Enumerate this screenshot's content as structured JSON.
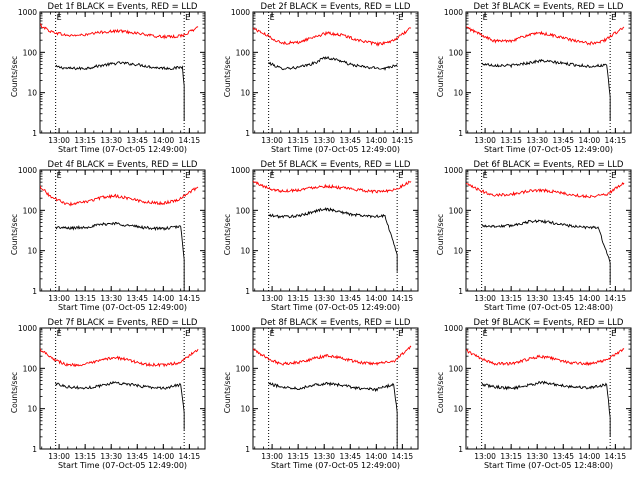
{
  "page": {
    "x_tick_labels": [
      "13:00",
      "13:15",
      "13:30",
      "13:45",
      "14:00",
      "14:15"
    ],
    "y_axis_label": "Counts/sec",
    "x_axis_label": "Start Time (07-Oct-05 12:49:00)",
    "series_colors": {
      "events": "#000000",
      "lld": "#ff0000"
    },
    "marker_letters": [
      "E",
      "E"
    ]
  },
  "chart_data": [
    {
      "type": "line",
      "title": "Det 1f BLACK = Events, RED = LLD",
      "ylabel": "Counts/sec",
      "xlabel": "Start Time (07-Oct-05 12:49:00)",
      "y_scale": "log",
      "ylim": [
        1,
        1000
      ],
      "y_tick_labels": [
        "1",
        "10",
        "100",
        "1000"
      ],
      "x_tick_labels": [
        "13:00",
        "13:15",
        "13:30",
        "13:45",
        "14:00",
        "14:15"
      ],
      "vertical_dotted_lines_time": [
        "12:58",
        "14:12"
      ],
      "series": [
        {
          "name": "Events",
          "color": "#000000",
          "x_time": [
            "12:58",
            "13:05",
            "13:15",
            "13:25",
            "13:35",
            "13:45",
            "13:55",
            "14:05",
            "14:11",
            "14:12",
            "14:12"
          ],
          "values": [
            44,
            40,
            40,
            48,
            55,
            50,
            42,
            40,
            43,
            15,
            2
          ]
        },
        {
          "name": "LLD",
          "color": "#ff0000",
          "x_time": [
            "12:49",
            "12:55",
            "13:05",
            "13:15",
            "13:25",
            "13:35",
            "13:45",
            "13:55",
            "14:05",
            "14:12",
            "14:20"
          ],
          "values": [
            480,
            330,
            260,
            270,
            320,
            340,
            300,
            250,
            240,
            270,
            420
          ]
        }
      ]
    },
    {
      "type": "line",
      "title": "Det 2f BLACK = Events, RED = LLD",
      "ylabel": "Counts/sec",
      "xlabel": "Start Time (07-Oct-05 12:49:00)",
      "y_scale": "log",
      "ylim": [
        1,
        1000
      ],
      "y_tick_labels": [
        "1",
        "10",
        "100",
        "1000"
      ],
      "x_tick_labels": [
        "13:00",
        "13:15",
        "13:30",
        "13:45",
        "14:00",
        "14:15"
      ],
      "vertical_dotted_lines_time": [
        "12:58",
        "14:12"
      ],
      "series": [
        {
          "name": "Events",
          "color": "#000000",
          "x_time": [
            "12:58",
            "13:05",
            "13:15",
            "13:25",
            "13:30",
            "13:38",
            "13:45",
            "13:55",
            "14:05",
            "14:12"
          ],
          "values": [
            55,
            40,
            42,
            55,
            75,
            65,
            50,
            42,
            40,
            50
          ]
        },
        {
          "name": "LLD",
          "color": "#ff0000",
          "x_time": [
            "12:49",
            "12:58",
            "13:05",
            "13:15",
            "13:25",
            "13:32",
            "13:40",
            "13:50",
            "14:00",
            "14:08",
            "14:20"
          ],
          "values": [
            400,
            250,
            170,
            175,
            250,
            300,
            270,
            200,
            160,
            175,
            400
          ]
        }
      ]
    },
    {
      "type": "line",
      "title": "Det 3f BLACK = Events, RED = LLD",
      "ylabel": "Counts/sec",
      "xlabel": "Start Time (07-Oct-05 12:49:00)",
      "y_scale": "log",
      "ylim": [
        1,
        1000
      ],
      "y_tick_labels": [
        "1",
        "10",
        "100",
        "1000"
      ],
      "x_tick_labels": [
        "13:00",
        "13:15",
        "13:30",
        "13:45",
        "14:00",
        "14:15"
      ],
      "vertical_dotted_lines_time": [
        "12:58",
        "14:12"
      ],
      "series": [
        {
          "name": "Events",
          "color": "#000000",
          "x_time": [
            "12:58",
            "13:05",
            "13:15",
            "13:25",
            "13:32",
            "13:40",
            "13:50",
            "14:00",
            "14:10",
            "14:12",
            "14:12"
          ],
          "values": [
            52,
            48,
            47,
            55,
            62,
            57,
            50,
            45,
            48,
            8,
            2
          ]
        },
        {
          "name": "LLD",
          "color": "#ff0000",
          "x_time": [
            "12:49",
            "12:58",
            "13:05",
            "13:15",
            "13:25",
            "13:32",
            "13:40",
            "13:50",
            "14:00",
            "14:08",
            "14:20"
          ],
          "values": [
            420,
            270,
            190,
            195,
            270,
            300,
            260,
            200,
            165,
            190,
            420
          ]
        }
      ]
    },
    {
      "type": "line",
      "title": "Det 4f BLACK = Events, RED = LLD",
      "ylabel": "Counts/sec",
      "xlabel": "Start Time (07-Oct-05 12:49:00)",
      "y_scale": "log",
      "ylim": [
        1,
        1000
      ],
      "y_tick_labels": [
        "1",
        "10",
        "100",
        "1000"
      ],
      "x_tick_labels": [
        "13:00",
        "13:15",
        "13:30",
        "13:45",
        "14:00",
        "14:15"
      ],
      "vertical_dotted_lines_time": [
        "12:58",
        "14:12"
      ],
      "series": [
        {
          "name": "Events",
          "color": "#000000",
          "x_time": [
            "12:58",
            "13:05",
            "13:15",
            "13:25",
            "13:32",
            "13:40",
            "13:50",
            "14:00",
            "14:10",
            "14:12",
            "14:12"
          ],
          "values": [
            38,
            36,
            38,
            45,
            48,
            42,
            37,
            35,
            40,
            6,
            1
          ]
        },
        {
          "name": "LLD",
          "color": "#ff0000",
          "x_time": [
            "12:49",
            "12:55",
            "13:05",
            "13:15",
            "13:25",
            "13:32",
            "13:40",
            "13:50",
            "14:00",
            "14:08",
            "14:20"
          ],
          "values": [
            400,
            220,
            140,
            160,
            210,
            230,
            200,
            160,
            150,
            180,
            380
          ]
        }
      ]
    },
    {
      "type": "line",
      "title": "Det 5f BLACK = Events, RED = LLD",
      "ylabel": "Counts/sec",
      "xlabel": "Start Time (07-Oct-05 12:49:00)",
      "y_scale": "log",
      "ylim": [
        1,
        1000
      ],
      "y_tick_labels": [
        "1",
        "10",
        "100",
        "1000"
      ],
      "x_tick_labels": [
        "13:00",
        "13:15",
        "13:30",
        "13:45",
        "14:00",
        "14:15"
      ],
      "vertical_dotted_lines_time": [
        "12:58",
        "14:12"
      ],
      "series": [
        {
          "name": "Events",
          "color": "#000000",
          "x_time": [
            "12:58",
            "13:05",
            "13:15",
            "13:25",
            "13:30",
            "13:38",
            "13:45",
            "13:55",
            "14:05",
            "14:12",
            "14:12"
          ],
          "values": [
            75,
            70,
            72,
            95,
            110,
            95,
            80,
            72,
            72,
            8,
            3
          ]
        },
        {
          "name": "LLD",
          "color": "#ff0000",
          "x_time": [
            "12:49",
            "12:58",
            "13:05",
            "13:15",
            "13:25",
            "13:32",
            "13:40",
            "13:50",
            "14:00",
            "14:10",
            "14:20"
          ],
          "values": [
            520,
            350,
            300,
            320,
            380,
            400,
            360,
            320,
            290,
            320,
            520
          ]
        }
      ]
    },
    {
      "type": "line",
      "title": "Det 6f BLACK = Events, RED = LLD",
      "ylabel": "Counts/sec",
      "xlabel": "Start Time (07-Oct-05 12:48:00)",
      "y_scale": "log",
      "ylim": [
        1,
        1000
      ],
      "y_tick_labels": [
        "1",
        "10",
        "100",
        "1000"
      ],
      "x_tick_labels": [
        "13:00",
        "13:15",
        "13:30",
        "13:45",
        "14:00",
        "14:15"
      ],
      "vertical_dotted_lines_time": [
        "12:58",
        "14:12"
      ],
      "series": [
        {
          "name": "Events",
          "color": "#000000",
          "x_time": [
            "12:58",
            "13:05",
            "13:15",
            "13:25",
            "13:30",
            "13:38",
            "13:45",
            "13:55",
            "14:05",
            "14:12",
            "14:12"
          ],
          "values": [
            42,
            40,
            42,
            52,
            55,
            50,
            44,
            38,
            38,
            5,
            1.5
          ]
        },
        {
          "name": "LLD",
          "color": "#ff0000",
          "x_time": [
            "12:49",
            "12:58",
            "13:05",
            "13:15",
            "13:25",
            "13:32",
            "13:40",
            "13:50",
            "14:00",
            "14:10",
            "14:20"
          ],
          "values": [
            450,
            300,
            240,
            250,
            300,
            320,
            290,
            240,
            220,
            250,
            480
          ]
        }
      ]
    },
    {
      "type": "line",
      "title": "Det 7f BLACK = Events, RED = LLD",
      "ylabel": "Counts/sec",
      "xlabel": "Start Time (07-Oct-05 12:49:00)",
      "y_scale": "log",
      "ylim": [
        1,
        1000
      ],
      "y_tick_labels": [
        "1",
        "10",
        "100",
        "1000"
      ],
      "x_tick_labels": [
        "13:00",
        "13:15",
        "13:30",
        "13:45",
        "14:00",
        "14:15"
      ],
      "vertical_dotted_lines_time": [
        "12:58",
        "14:12"
      ],
      "series": [
        {
          "name": "Events",
          "color": "#000000",
          "x_time": [
            "12:58",
            "13:05",
            "13:15",
            "13:25",
            "13:32",
            "13:40",
            "13:50",
            "14:00",
            "14:10",
            "14:12",
            "14:12"
          ],
          "values": [
            42,
            35,
            32,
            38,
            45,
            40,
            35,
            32,
            40,
            8,
            3
          ]
        },
        {
          "name": "LLD",
          "color": "#ff0000",
          "x_time": [
            "12:49",
            "12:58",
            "13:05",
            "13:15",
            "13:25",
            "13:32",
            "13:40",
            "13:50",
            "14:00",
            "14:10",
            "14:20"
          ],
          "values": [
            300,
            160,
            120,
            125,
            160,
            190,
            160,
            125,
            120,
            140,
            300
          ]
        }
      ]
    },
    {
      "type": "line",
      "title": "Det 8f BLACK = Events, RED = LLD",
      "ylabel": "Counts/sec",
      "xlabel": "Start Time (07-Oct-05 12:49:00)",
      "y_scale": "log",
      "ylim": [
        1,
        1000
      ],
      "y_tick_labels": [
        "1",
        "10",
        "100",
        "1000"
      ],
      "x_tick_labels": [
        "13:00",
        "13:15",
        "13:30",
        "13:45",
        "14:00",
        "14:15"
      ],
      "vertical_dotted_lines_time": [
        "12:58",
        "14:12"
      ],
      "series": [
        {
          "name": "Events",
          "color": "#000000",
          "x_time": [
            "12:58",
            "13:05",
            "13:15",
            "13:20",
            "13:25",
            "13:32",
            "13:40",
            "13:50",
            "14:00",
            "14:10",
            "14:12",
            "14:12"
          ],
          "values": [
            42,
            35,
            32,
            35,
            40,
            42,
            38,
            32,
            30,
            40,
            8,
            1
          ]
        },
        {
          "name": "LLD",
          "color": "#ff0000",
          "x_time": [
            "12:49",
            "12:58",
            "13:05",
            "13:15",
            "13:25",
            "13:32",
            "13:40",
            "13:50",
            "14:00",
            "14:10",
            "14:20"
          ],
          "values": [
            300,
            170,
            130,
            140,
            180,
            210,
            180,
            140,
            130,
            150,
            340
          ]
        }
      ]
    },
    {
      "type": "line",
      "title": "Det 9f BLACK = Events, RED = LLD",
      "ylabel": "Counts/sec",
      "xlabel": "Start Time (07-Oct-05 12:48:00)",
      "y_scale": "log",
      "ylim": [
        1,
        1000
      ],
      "y_tick_labels": [
        "1",
        "10",
        "100",
        "1000"
      ],
      "x_tick_labels": [
        "13:00",
        "13:15",
        "13:30",
        "13:45",
        "14:00",
        "14:15"
      ],
      "vertical_dotted_lines_time": [
        "12:58",
        "14:12"
      ],
      "series": [
        {
          "name": "Events",
          "color": "#000000",
          "x_time": [
            "12:58",
            "13:05",
            "13:15",
            "13:25",
            "13:32",
            "13:40",
            "13:50",
            "14:00",
            "14:10",
            "14:12",
            "14:12"
          ],
          "values": [
            40,
            35,
            32,
            38,
            45,
            40,
            35,
            33,
            40,
            6,
            2
          ]
        },
        {
          "name": "LLD",
          "color": "#ff0000",
          "x_time": [
            "12:49",
            "12:58",
            "13:05",
            "13:15",
            "13:25",
            "13:32",
            "13:40",
            "13:50",
            "14:00",
            "14:10",
            "14:20"
          ],
          "values": [
            280,
            170,
            130,
            130,
            170,
            200,
            170,
            135,
            130,
            160,
            300
          ]
        }
      ]
    }
  ]
}
